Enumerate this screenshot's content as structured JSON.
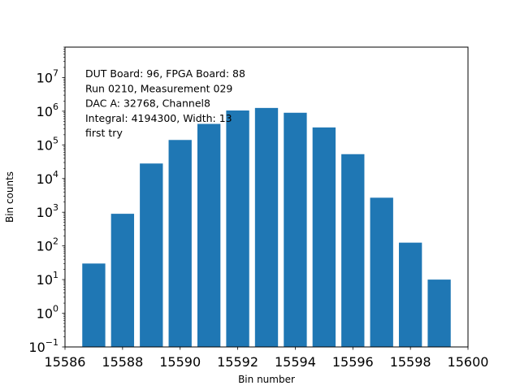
{
  "chart_data": {
    "type": "bar",
    "title": "",
    "xlabel": "Bin number",
    "ylabel": "Bin counts",
    "yscale": "log",
    "xlim": [
      15586.0,
      15600.0
    ],
    "ylim": [
      0.1,
      80000000
    ],
    "x": [
      15587,
      15588,
      15589,
      15590,
      15591,
      15592,
      15593,
      15594,
      15595,
      15596,
      15597,
      15598,
      15599
    ],
    "values": [
      30,
      900,
      28000,
      140000,
      420000,
      1050000,
      1250000,
      900000,
      330000,
      53000,
      2700,
      125,
      10
    ],
    "bar_width": 0.8,
    "bar_color": "#1f77b4",
    "xticks": [
      15586,
      15588,
      15590,
      15592,
      15594,
      15596,
      15598,
      15600
    ],
    "yticks": [
      {
        "exp": -1,
        "label_base": "10",
        "label_exp": "−1"
      },
      {
        "exp": 0,
        "label_base": "10",
        "label_exp": "0"
      },
      {
        "exp": 1,
        "label_base": "10",
        "label_exp": "1"
      },
      {
        "exp": 2,
        "label_base": "10",
        "label_exp": "2"
      },
      {
        "exp": 3,
        "label_base": "10",
        "label_exp": "3"
      },
      {
        "exp": 4,
        "label_base": "10",
        "label_exp": "4"
      },
      {
        "exp": 5,
        "label_base": "10",
        "label_exp": "5"
      },
      {
        "exp": 6,
        "label_base": "10",
        "label_exp": "6"
      },
      {
        "exp": 7,
        "label_base": "10",
        "label_exp": "7"
      }
    ],
    "annotations": [
      "DUT Board: 96, FPGA Board: 88",
      "Run 0210, Measurement 029",
      "DAC A: 32768, Channel8",
      "Integral: 4194300, Width: 13",
      "first try"
    ]
  }
}
